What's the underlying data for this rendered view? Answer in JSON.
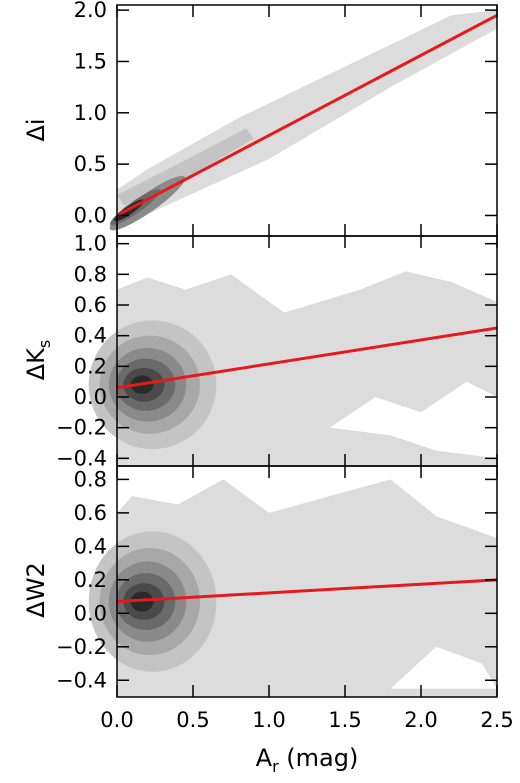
{
  "chart_data": [
    {
      "type": "contour",
      "ylabel": "Δi",
      "xlim": [
        0.0,
        2.5
      ],
      "ylim": [
        -0.2,
        2.05
      ],
      "yticks": [
        "0.0",
        "0.5",
        "1.0",
        "1.5",
        "2.0"
      ],
      "fit_line": {
        "color": "#e41a1c",
        "points": [
          [
            0.0,
            0.0
          ],
          [
            2.5,
            1.95
          ]
        ]
      }
    },
    {
      "type": "contour",
      "ylabel_main": "ΔK",
      "ylabel_sub": "s",
      "xlim": [
        0.0,
        2.5
      ],
      "ylim": [
        -0.45,
        1.05
      ],
      "yticks": [
        "−0.4",
        "−0.2",
        "0.0",
        "0.2",
        "0.4",
        "0.6",
        "0.8",
        "1.0"
      ],
      "fit_line": {
        "color": "#e41a1c",
        "points": [
          [
            0.0,
            0.06
          ],
          [
            2.5,
            0.45
          ]
        ]
      }
    },
    {
      "type": "contour",
      "ylabel": "ΔW2",
      "xlim": [
        0.0,
        2.5
      ],
      "ylim": [
        -0.5,
        0.88
      ],
      "yticks": [
        "−0.4",
        "−0.2",
        "0.0",
        "0.2",
        "0.4",
        "0.6",
        "0.8"
      ],
      "fit_line": {
        "color": "#e41a1c",
        "points": [
          [
            0.0,
            0.07
          ],
          [
            2.5,
            0.2
          ]
        ]
      }
    }
  ],
  "x_axis": {
    "label_main": "A",
    "label_sub": "r",
    "label_unit": " (mag)",
    "ticks": [
      "0.0",
      "0.5",
      "1.0",
      "1.5",
      "2.0",
      "2.5"
    ]
  },
  "colors": {
    "fill_light": "#dcdcdc",
    "fill_levels": [
      "#c4c4c4",
      "#a8a8a8",
      "#8a8a8a",
      "#6a6a6a",
      "#4a4a4a",
      "#2a2a2a"
    ],
    "fit": "#e41a1c"
  }
}
